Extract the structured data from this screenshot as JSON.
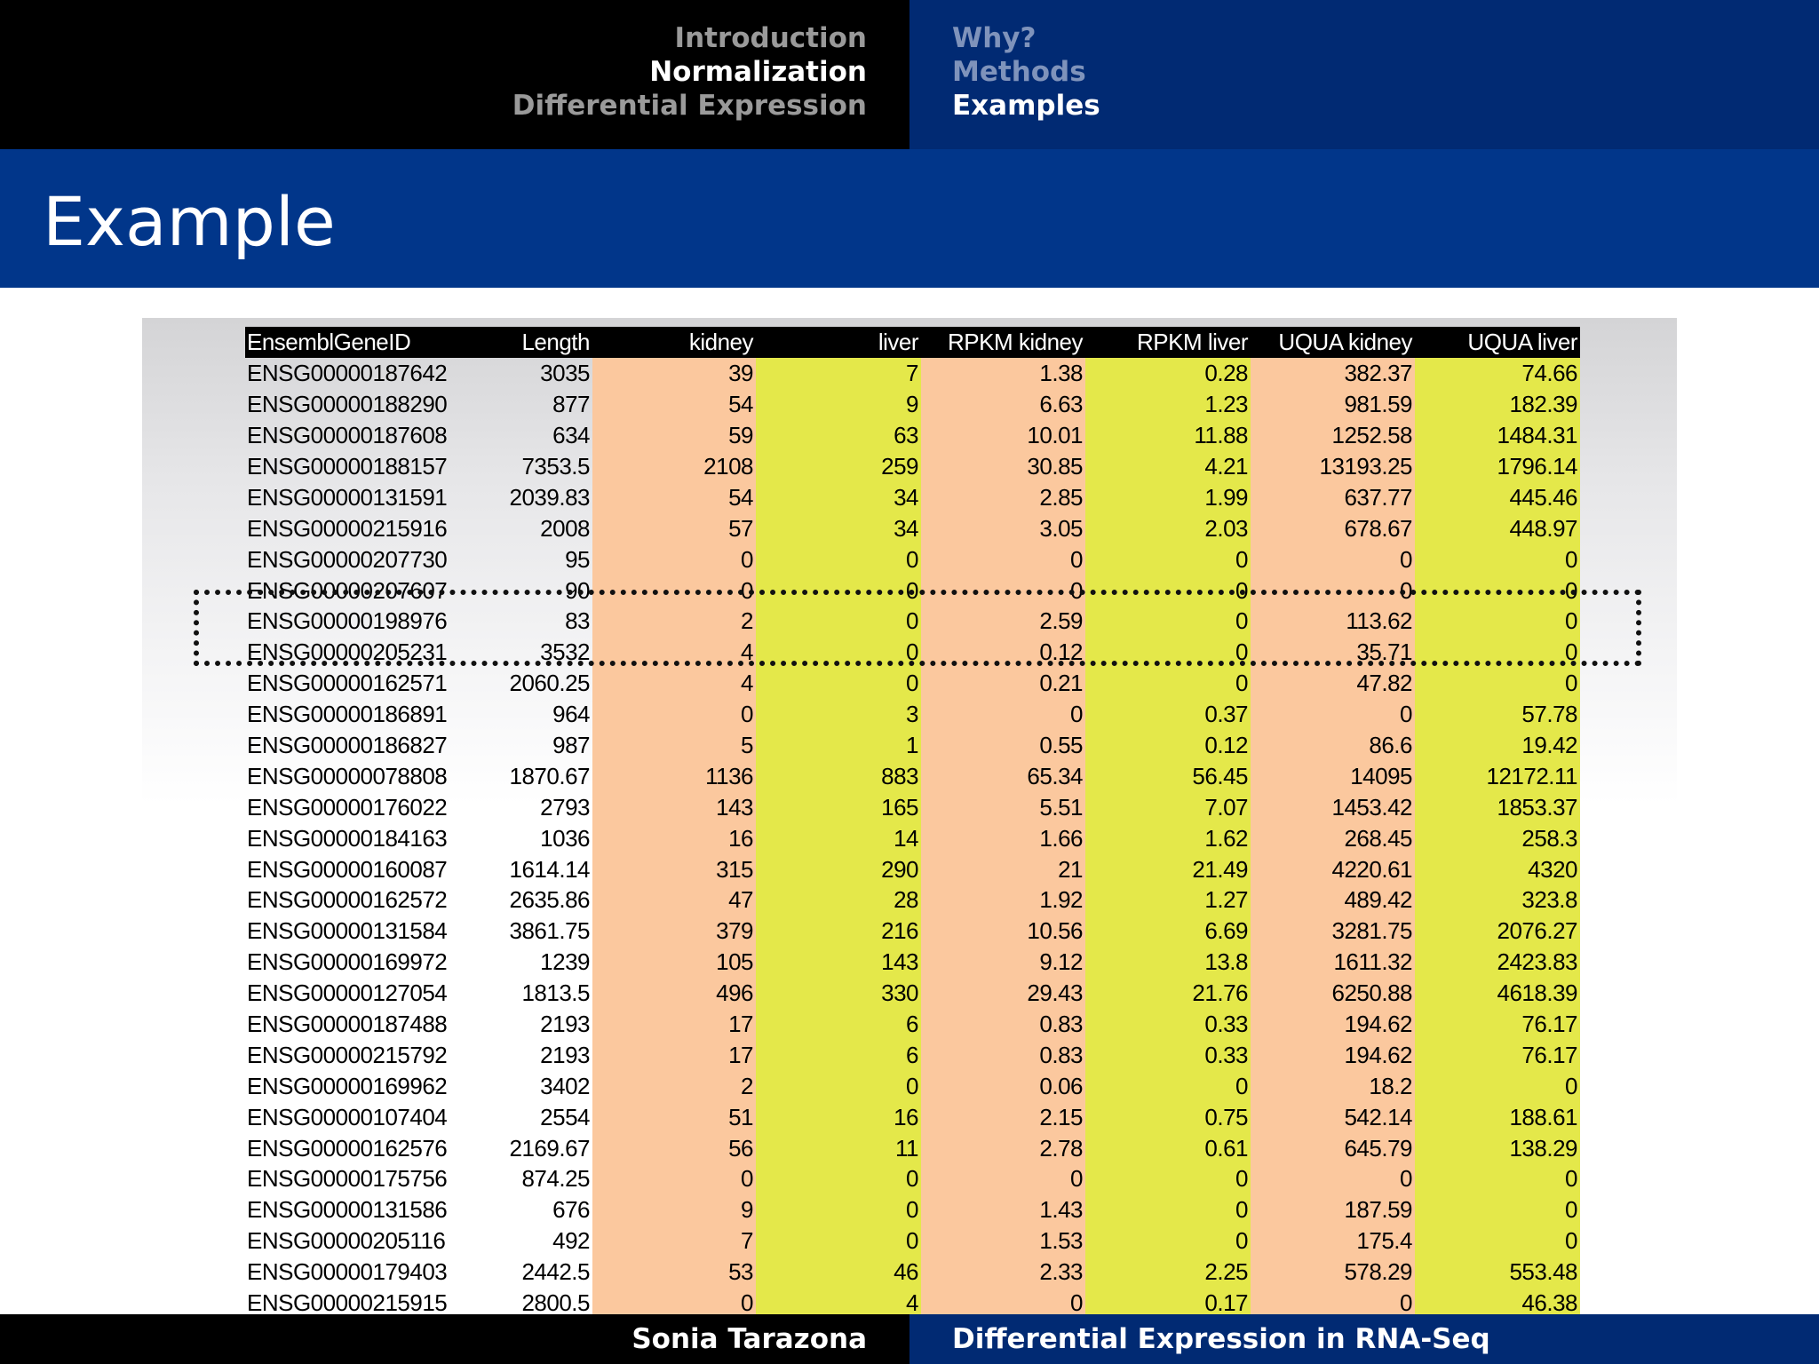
{
  "nav": {
    "sections": [
      {
        "label": "Introduction",
        "active": false
      },
      {
        "label": "Normalization",
        "active": true
      },
      {
        "label": "Differential Expression",
        "active": false
      }
    ],
    "subsections": [
      {
        "label": "Why?",
        "active": false
      },
      {
        "label": "Methods",
        "active": false
      },
      {
        "label": "Examples",
        "active": true
      }
    ]
  },
  "slide": {
    "title": "Example"
  },
  "table": {
    "headers": [
      "EnsemblGeneID",
      "Length",
      "kidney",
      "liver",
      "RPKM kidney",
      "RPKM liver",
      "UQUA kidney",
      "UQUA liver"
    ],
    "rows": [
      [
        "ENSG00000187642",
        "3035",
        "39",
        "7",
        "1.38",
        "0.28",
        "382.37",
        "74.66"
      ],
      [
        "ENSG00000188290",
        "877",
        "54",
        "9",
        "6.63",
        "1.23",
        "981.59",
        "182.39"
      ],
      [
        "ENSG00000187608",
        "634",
        "59",
        "63",
        "10.01",
        "11.88",
        "1252.58",
        "1484.31"
      ],
      [
        "ENSG00000188157",
        "7353.5",
        "2108",
        "259",
        "30.85",
        "4.21",
        "13193.25",
        "1796.14"
      ],
      [
        "ENSG00000131591",
        "2039.83",
        "54",
        "34",
        "2.85",
        "1.99",
        "637.77",
        "445.46"
      ],
      [
        "ENSG00000215916",
        "2008",
        "57",
        "34",
        "3.05",
        "2.03",
        "678.67",
        "448.97"
      ],
      [
        "ENSG00000207730",
        "95",
        "0",
        "0",
        "0",
        "0",
        "0",
        "0"
      ],
      [
        "ENSG00000207607",
        "90",
        "0",
        "0",
        "0",
        "0",
        "0",
        "0"
      ],
      [
        "ENSG00000198976",
        "83",
        "2",
        "0",
        "2.59",
        "0",
        "113.62",
        "0"
      ],
      [
        "ENSG00000205231",
        "3532",
        "4",
        "0",
        "0.12",
        "0",
        "35.71",
        "0"
      ],
      [
        "ENSG00000162571",
        "2060.25",
        "4",
        "0",
        "0.21",
        "0",
        "47.82",
        "0"
      ],
      [
        "ENSG00000186891",
        "964",
        "0",
        "3",
        "0",
        "0.37",
        "0",
        "57.78"
      ],
      [
        "ENSG00000186827",
        "987",
        "5",
        "1",
        "0.55",
        "0.12",
        "86.6",
        "19.42"
      ],
      [
        "ENSG00000078808",
        "1870.67",
        "1136",
        "883",
        "65.34",
        "56.45",
        "14095",
        "12172.11"
      ],
      [
        "ENSG00000176022",
        "2793",
        "143",
        "165",
        "5.51",
        "7.07",
        "1453.42",
        "1853.37"
      ],
      [
        "ENSG00000184163",
        "1036",
        "16",
        "14",
        "1.66",
        "1.62",
        "268.45",
        "258.3"
      ],
      [
        "ENSG00000160087",
        "1614.14",
        "315",
        "290",
        "21",
        "21.49",
        "4220.61",
        "4320"
      ],
      [
        "ENSG00000162572",
        "2635.86",
        "47",
        "28",
        "1.92",
        "1.27",
        "489.42",
        "323.8"
      ],
      [
        "ENSG00000131584",
        "3861.75",
        "379",
        "216",
        "10.56",
        "6.69",
        "3281.75",
        "2076.27"
      ],
      [
        "ENSG00000169972",
        "1239",
        "105",
        "143",
        "9.12",
        "13.8",
        "1611.32",
        "2423.83"
      ],
      [
        "ENSG00000127054",
        "1813.5",
        "496",
        "330",
        "29.43",
        "21.76",
        "6250.88",
        "4618.39"
      ],
      [
        "ENSG00000187488",
        "2193",
        "17",
        "6",
        "0.83",
        "0.33",
        "194.62",
        "76.17"
      ],
      [
        "ENSG00000215792",
        "2193",
        "17",
        "6",
        "0.83",
        "0.33",
        "194.62",
        "76.17"
      ],
      [
        "ENSG00000169962",
        "3402",
        "2",
        "0",
        "0.06",
        "0",
        "18.2",
        "0"
      ],
      [
        "ENSG00000107404",
        "2554",
        "51",
        "16",
        "2.15",
        "0.75",
        "542.14",
        "188.61"
      ],
      [
        "ENSG00000162576",
        "2169.67",
        "56",
        "11",
        "2.78",
        "0.61",
        "645.79",
        "138.29"
      ],
      [
        "ENSG00000175756",
        "874.25",
        "0",
        "0",
        "0",
        "0",
        "0",
        "0"
      ],
      [
        "ENSG00000131586",
        "676",
        "9",
        "0",
        "1.43",
        "0",
        "187.59",
        "0"
      ],
      [
        "ENSG00000205116",
        "492",
        "7",
        "0",
        "1.53",
        "0",
        "175.4",
        "0"
      ],
      [
        "ENSG00000179403",
        "2442.5",
        "53",
        "46",
        "2.33",
        "2.25",
        "578.29",
        "553.48"
      ],
      [
        "ENSG00000215915",
        "2800.5",
        "0",
        "4",
        "0",
        "0.17",
        "0",
        "46.38"
      ]
    ]
  },
  "footer": {
    "author": "Sonia Tarazona",
    "talk_title": "Differential Expression in RNA-Seq"
  },
  "colors": {
    "nav_dark": "#000000",
    "nav_blue": "#012a73",
    "title_blue": "#01368a",
    "kidney_col": "#fbc89e",
    "liver_col": "#e4e84a"
  }
}
